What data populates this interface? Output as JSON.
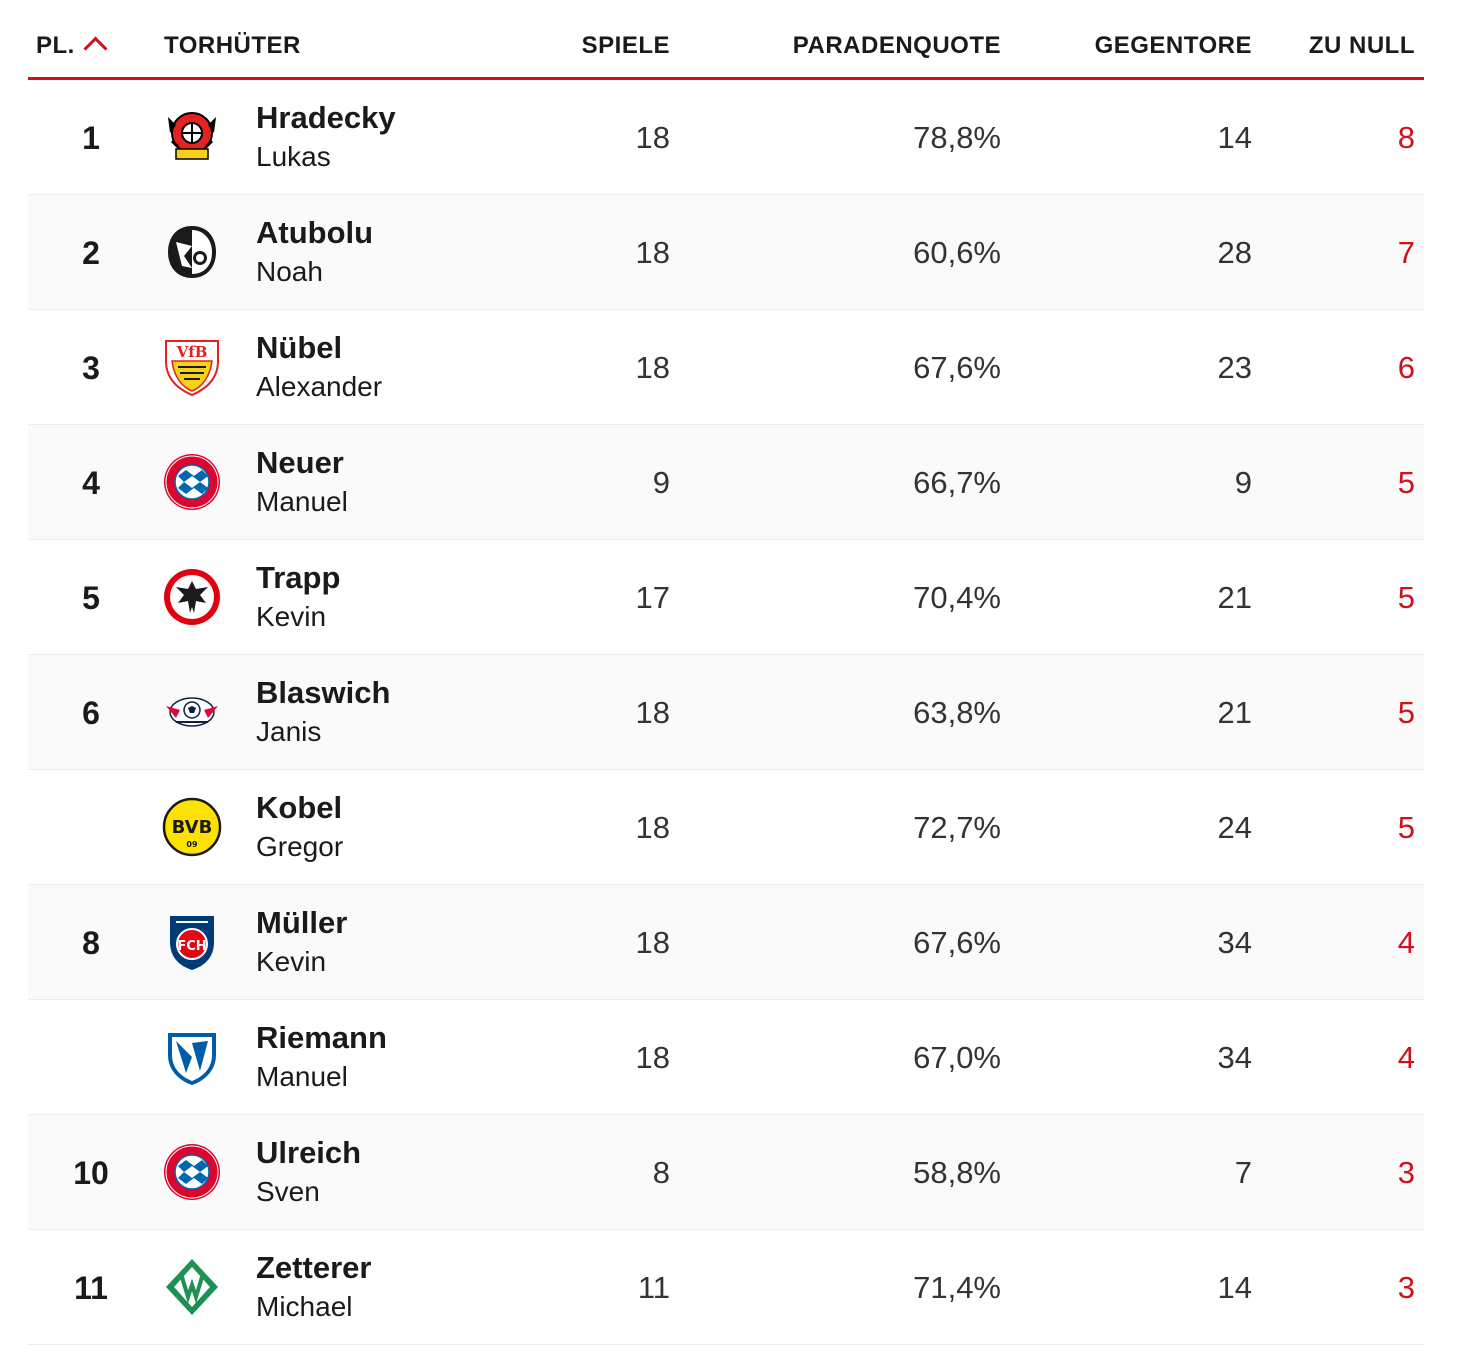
{
  "header": {
    "rank": "PL.",
    "goalkeeper": "TORHÜTER",
    "games": "SPIELE",
    "save_rate": "PARADENQUOTE",
    "goals_against": "GEGENTORE",
    "clean_sheets": "ZU NULL"
  },
  "colors": {
    "accent": "#d0111b",
    "text": "#1a1a1a",
    "row_alt": "#fafafa"
  },
  "rows": [
    {
      "rank": "1",
      "last": "Hradecky",
      "first": "Lukas",
      "games": "18",
      "save_rate": "78,8%",
      "goals_against": "14",
      "clean_sheets": "8",
      "club_icon": "leverkusen-crest-icon"
    },
    {
      "rank": "2",
      "last": "Atubolu",
      "first": "Noah",
      "games": "18",
      "save_rate": "60,6%",
      "goals_against": "28",
      "clean_sheets": "7",
      "club_icon": "freiburg-crest-icon"
    },
    {
      "rank": "3",
      "last": "Nübel",
      "first": "Alexander",
      "games": "18",
      "save_rate": "67,6%",
      "goals_against": "23",
      "clean_sheets": "6",
      "club_icon": "stuttgart-crest-icon"
    },
    {
      "rank": "4",
      "last": "Neuer",
      "first": "Manuel",
      "games": "9",
      "save_rate": "66,7%",
      "goals_against": "9",
      "clean_sheets": "5",
      "club_icon": "bayern-crest-icon"
    },
    {
      "rank": "5",
      "last": "Trapp",
      "first": "Kevin",
      "games": "17",
      "save_rate": "70,4%",
      "goals_against": "21",
      "clean_sheets": "5",
      "club_icon": "frankfurt-crest-icon"
    },
    {
      "rank": "6",
      "last": "Blaswich",
      "first": "Janis",
      "games": "18",
      "save_rate": "63,8%",
      "goals_against": "21",
      "clean_sheets": "5",
      "club_icon": "leipzig-crest-icon"
    },
    {
      "rank": "",
      "last": "Kobel",
      "first": "Gregor",
      "games": "18",
      "save_rate": "72,7%",
      "goals_against": "24",
      "clean_sheets": "5",
      "club_icon": "dortmund-crest-icon"
    },
    {
      "rank": "8",
      "last": "Müller",
      "first": "Kevin",
      "games": "18",
      "save_rate": "67,6%",
      "goals_against": "34",
      "clean_sheets": "4",
      "club_icon": "heidenheim-crest-icon"
    },
    {
      "rank": "",
      "last": "Riemann",
      "first": "Manuel",
      "games": "18",
      "save_rate": "67,0%",
      "goals_against": "34",
      "clean_sheets": "4",
      "club_icon": "bochum-crest-icon"
    },
    {
      "rank": "10",
      "last": "Ulreich",
      "first": "Sven",
      "games": "8",
      "save_rate": "58,8%",
      "goals_against": "7",
      "clean_sheets": "3",
      "club_icon": "bayern-crest-icon"
    },
    {
      "rank": "11",
      "last": "Zetterer",
      "first": "Michael",
      "games": "11",
      "save_rate": "71,4%",
      "goals_against": "14",
      "clean_sheets": "3",
      "club_icon": "bremen-crest-icon"
    }
  ]
}
